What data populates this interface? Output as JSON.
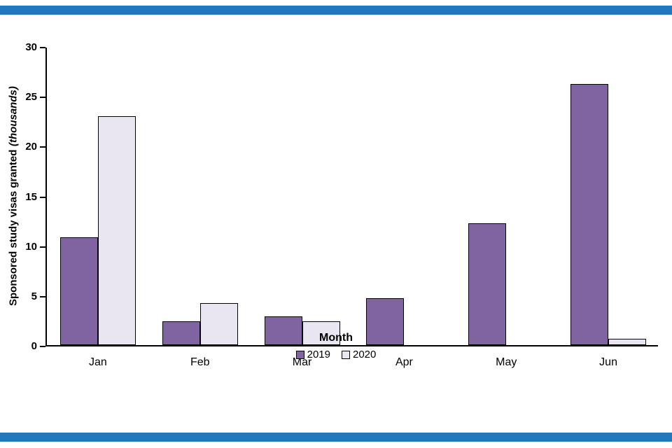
{
  "page": {
    "background": "#ffffff",
    "accent_bar_color": "#2178bf"
  },
  "chart_data": {
    "type": "bar",
    "title": "",
    "categories": [
      "Jan",
      "Feb",
      "Mar",
      "Apr",
      "May",
      "Jun"
    ],
    "series": [
      {
        "name": "2019",
        "color": "#8064A2",
        "values": [
          10.8,
          2.4,
          2.9,
          4.7,
          12.2,
          26.2
        ]
      },
      {
        "name": "2020",
        "color": "#E9E6F2",
        "values": [
          23.0,
          4.2,
          2.4,
          0,
          0,
          0.6
        ]
      }
    ],
    "xlabel": "Month",
    "ylabel": "Sponsored study visas granted",
    "ylabel_suffix": "(thousands)",
    "ylim": [
      0,
      30
    ],
    "yticks": [
      0,
      5,
      10,
      15,
      20,
      25,
      30
    ],
    "grid": false,
    "legend_position": "bottom",
    "bar_border_color": "#000000",
    "axis_color": "#000000"
  }
}
